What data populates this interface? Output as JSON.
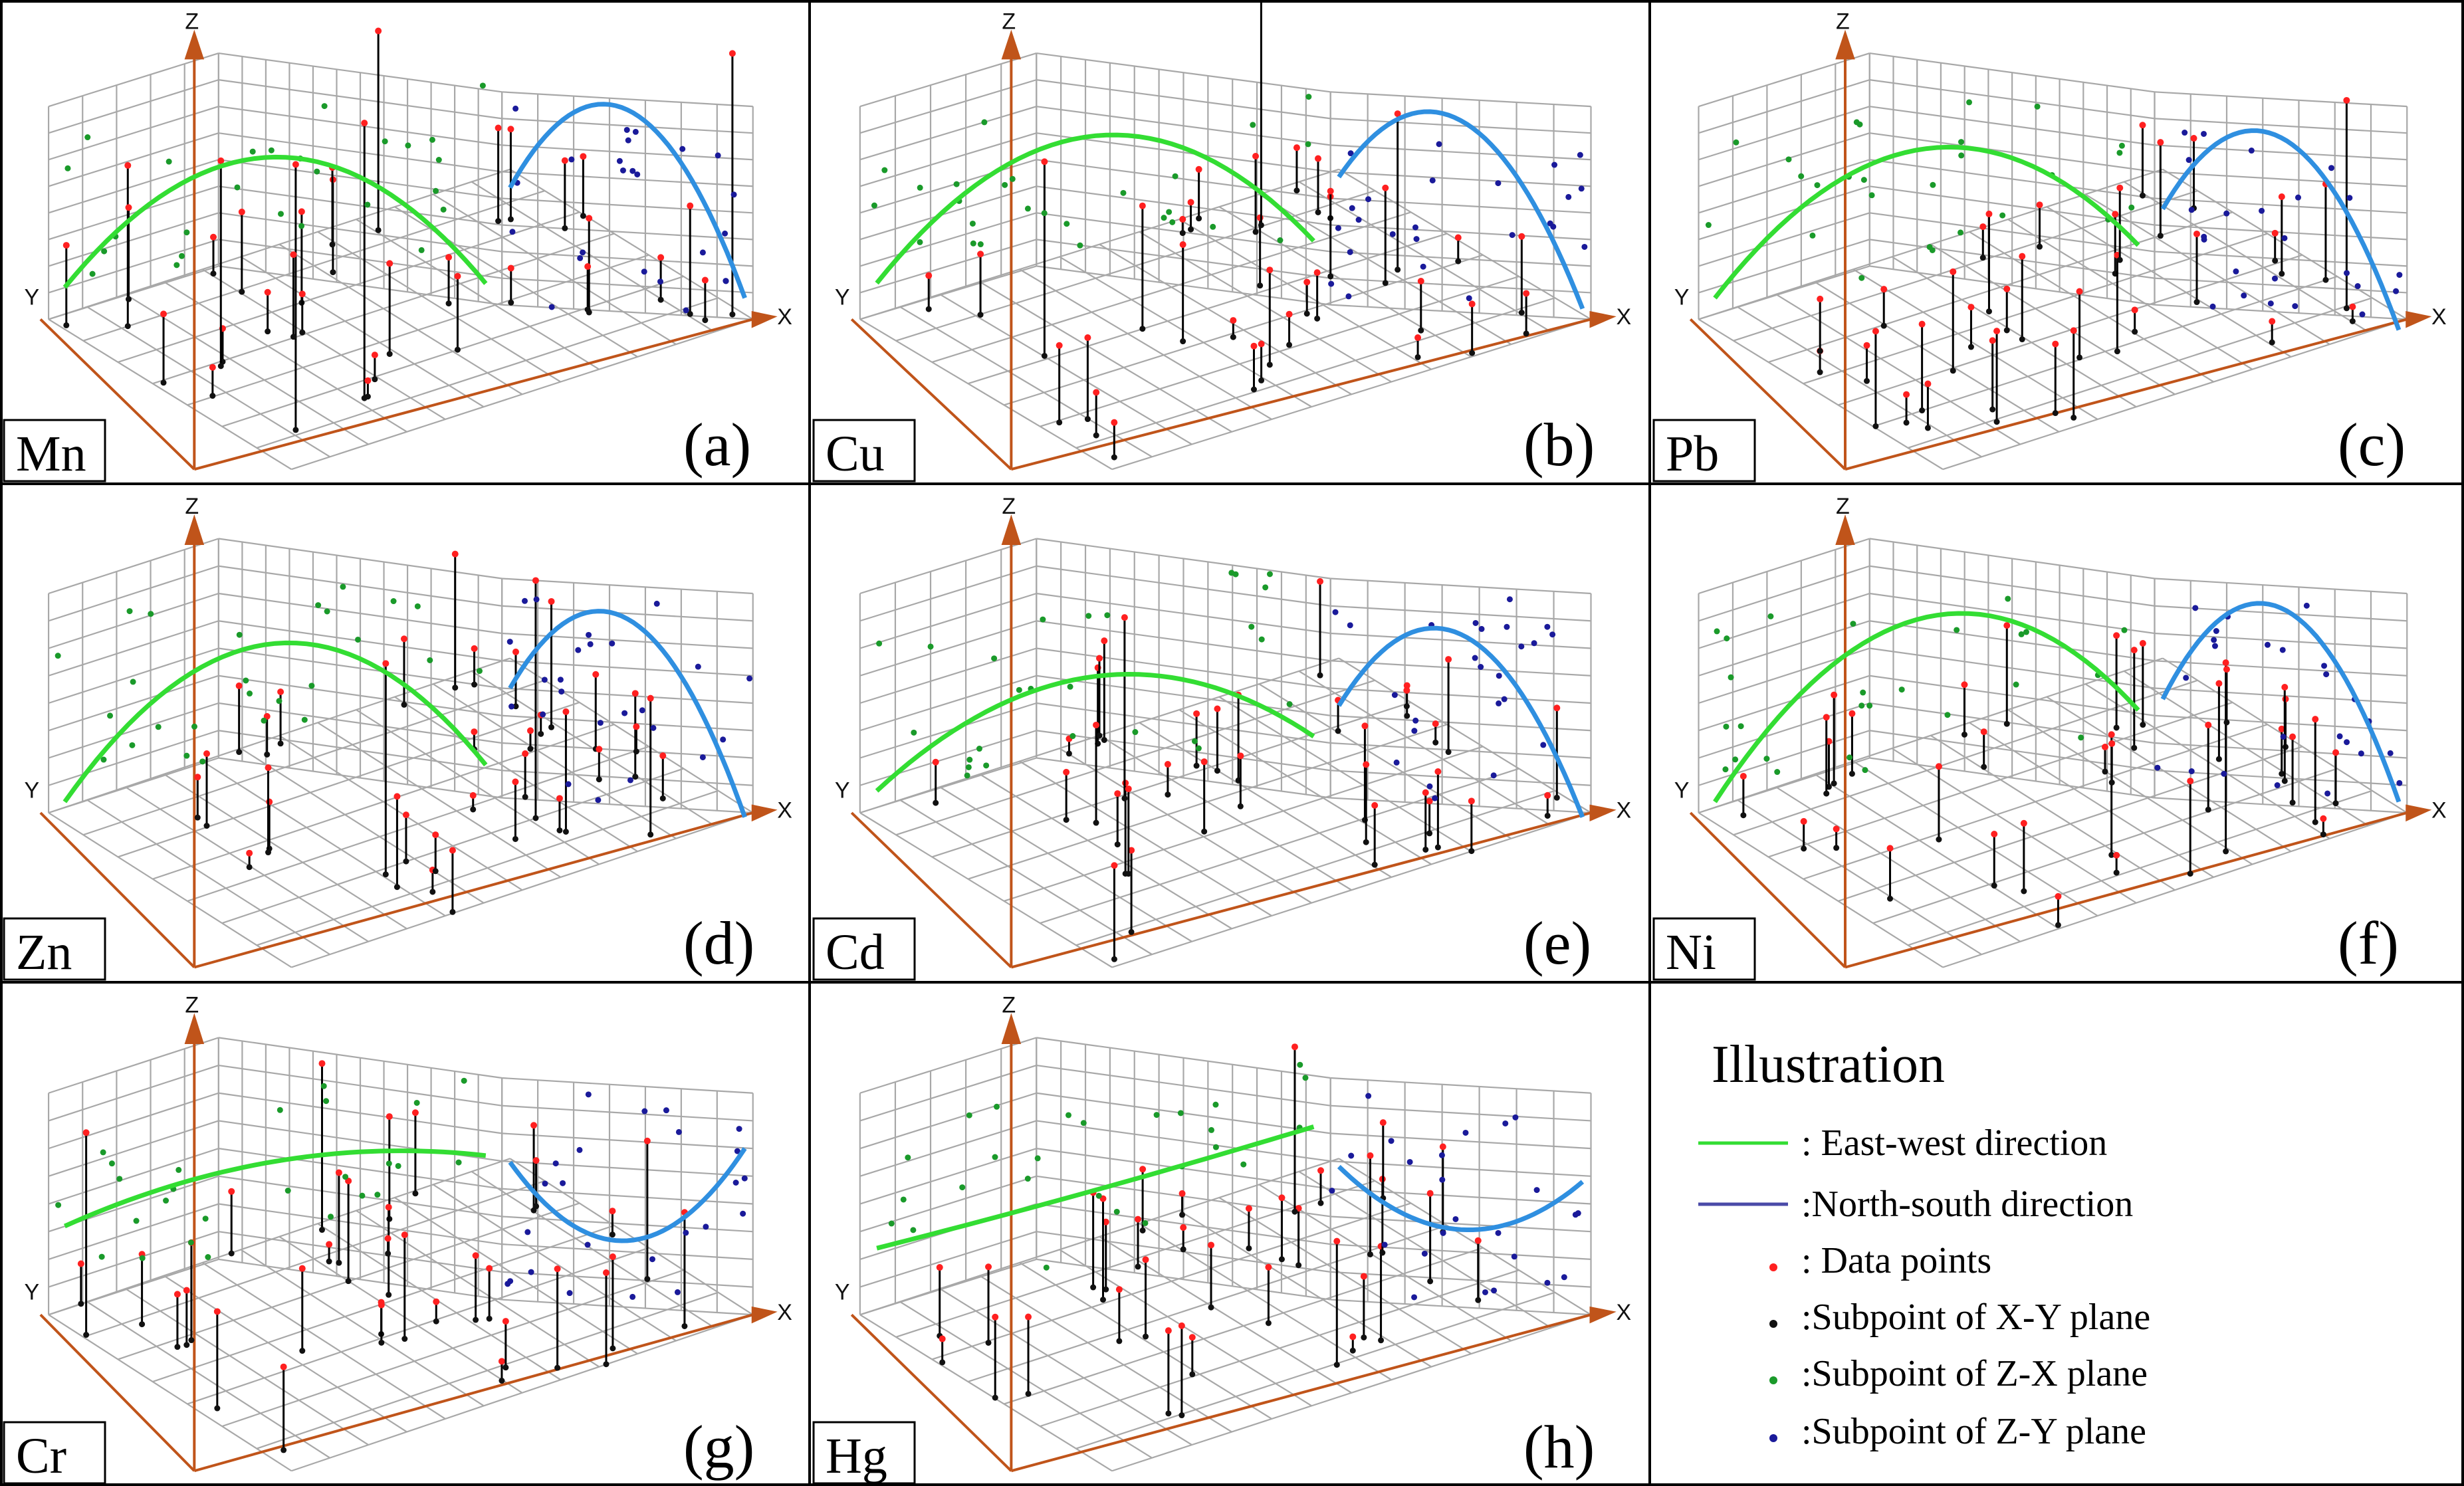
{
  "chart_data": [
    {
      "type": "scatter",
      "element": "Mn",
      "panel": "(a)",
      "axis_labels": {
        "x": "X",
        "y": "Y",
        "z": "Z"
      },
      "ew": [
        0.15,
        0.62,
        0.1
      ],
      "ns": [
        0.55,
        0.95,
        0.1
      ]
    },
    {
      "type": "scatter",
      "element": "Cu",
      "panel": "(b)",
      "axis_labels": {
        "x": "X",
        "y": "Y",
        "z": "Z"
      },
      "ew": [
        0.17,
        0.72,
        0.3
      ],
      "ns": [
        0.6,
        0.9,
        0.05
      ]
    },
    {
      "type": "scatter",
      "element": "Pb",
      "panel": "(c)",
      "axis_labels": {
        "x": "X",
        "y": "Y",
        "z": "Z"
      },
      "ew": [
        0.1,
        0.66,
        0.28
      ],
      "ns": [
        0.45,
        0.82,
        -0.05
      ]
    },
    {
      "type": "scatter",
      "element": "Zn",
      "panel": "(d)",
      "axis_labels": {
        "x": "X",
        "y": "Y",
        "z": "Z"
      },
      "ew": [
        0.05,
        0.63,
        0.15
      ],
      "ns": [
        0.5,
        0.85,
        -0.02
      ]
    },
    {
      "type": "scatter",
      "element": "Cd",
      "panel": "(e)",
      "axis_labels": {
        "x": "X",
        "y": "Y",
        "z": "Z"
      },
      "ew": [
        0.1,
        0.48,
        0.28
      ],
      "ns": [
        0.42,
        0.78,
        -0.02
      ]
    },
    {
      "type": "scatter",
      "element": "Ni",
      "panel": "(f)",
      "axis_labels": {
        "x": "X",
        "y": "Y",
        "z": "Z"
      },
      "ew": [
        0.05,
        0.75,
        0.4
      ],
      "ns": [
        0.45,
        0.9,
        0.05
      ]
    },
    {
      "type": "scatter",
      "element": "Cr",
      "panel": "(g)",
      "axis_labels": {
        "x": "X",
        "y": "Y",
        "z": "Z"
      },
      "ew": [
        0.4,
        0.55,
        0.65
      ],
      "ns": [
        0.62,
        0.3,
        0.75
      ]
    },
    {
      "type": "scatter",
      "element": "Hg",
      "panel": "(h)",
      "axis_labels": {
        "x": "X",
        "y": "Y",
        "z": "Z"
      },
      "ew": [
        0.3,
        0.42,
        0.78
      ],
      "ns": [
        0.6,
        0.35,
        0.6
      ]
    }
  ],
  "legend": {
    "title": "Illustration",
    "items": [
      {
        "label": ": East-west direction",
        "kind": "line",
        "color": "#33dd33"
      },
      {
        "label": ":North-south direction",
        "kind": "line",
        "color": "#4a4aa8"
      },
      {
        "label": ": Data points",
        "kind": "dot",
        "color": "#ff2020"
      },
      {
        "label": ":Subpoint of X-Y plane",
        "kind": "dot",
        "color": "#111111"
      },
      {
        "label": ":Subpoint of Z-X plane",
        "kind": "dot",
        "color": "#1a9a2a"
      },
      {
        "label": ":Subpoint of Z-Y plane",
        "kind": "dot",
        "color": "#1a1a9a"
      }
    ]
  },
  "colors": {
    "grid": "#a8a8a8",
    "axis": "#c0541a",
    "east_west": "#33dd33",
    "north_south": "#2f8fe0",
    "data_point": "#ff2020",
    "subpoint_xy": "#111111",
    "subpoint_zx": "#1a9a2a",
    "subpoint_zy": "#1a1a9a",
    "stem": "#000000"
  }
}
